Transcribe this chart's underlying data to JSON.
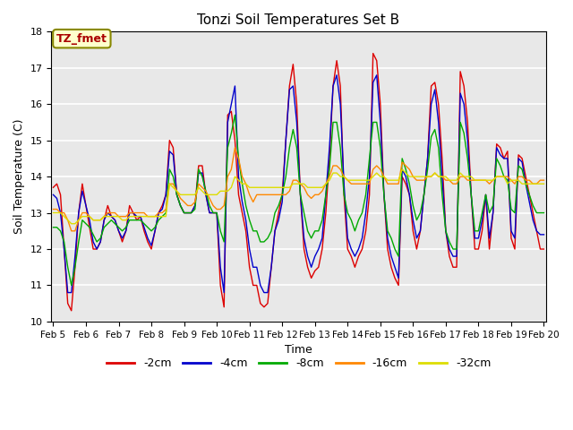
{
  "title": "Tonzi Soil Temperatures Set B",
  "xlabel": "Time",
  "ylabel": "Soil Temperature (C)",
  "ylim": [
    10.0,
    18.0
  ],
  "yticks": [
    10.0,
    11.0,
    12.0,
    13.0,
    14.0,
    15.0,
    16.0,
    17.0,
    18.0
  ],
  "bg_color": "#e8e8e8",
  "annotation_text": "TZ_fmet",
  "annotation_color": "#aa0000",
  "annotation_bg": "#ffffcc",
  "annotation_border": "#888800",
  "series_colors": {
    "-2cm": "#dd0000",
    "-4cm": "#0000cc",
    "-8cm": "#00aa00",
    "-16cm": "#ff8800",
    "-32cm": "#dddd00"
  },
  "x_labels": [
    "Feb 5",
    "Feb 6",
    "Feb 7",
    "Feb 8",
    "Feb 9",
    "Feb 10",
    "Feb 11",
    "Feb 12",
    "Feb 13",
    "Feb 14",
    "Feb 15",
    "Feb 16",
    "Feb 17",
    "Feb 18",
    "Feb 19",
    "Feb 20"
  ],
  "n_per_day": 8,
  "legend_entries": [
    "-2cm",
    "-4cm",
    "-8cm",
    "-16cm",
    "-32cm"
  ],
  "data": {
    "-2cm": [
      13.7,
      13.8,
      13.5,
      12.0,
      10.5,
      10.3,
      11.5,
      13.0,
      13.8,
      13.2,
      12.6,
      12.0,
      12.0,
      12.2,
      12.8,
      13.2,
      12.9,
      12.8,
      12.5,
      12.2,
      12.5,
      13.2,
      13.0,
      12.8,
      12.9,
      12.5,
      12.2,
      12.0,
      12.5,
      13.0,
      13.2,
      13.5,
      15.0,
      14.8,
      13.5,
      13.2,
      13.0,
      13.0,
      13.0,
      13.2,
      14.3,
      14.3,
      13.5,
      13.0,
      13.0,
      13.0,
      11.0,
      10.4,
      15.7,
      15.8,
      15.0,
      13.5,
      13.0,
      12.5,
      11.5,
      11.0,
      11.0,
      10.5,
      10.4,
      10.5,
      11.5,
      12.5,
      13.0,
      13.5,
      15.0,
      16.5,
      17.1,
      16.0,
      13.5,
      12.0,
      11.5,
      11.2,
      11.4,
      11.5,
      12.0,
      13.0,
      14.5,
      16.5,
      17.2,
      16.5,
      13.5,
      12.0,
      11.8,
      11.5,
      11.8,
      12.0,
      12.5,
      13.5,
      17.4,
      17.2,
      16.0,
      13.5,
      12.0,
      11.5,
      11.2,
      11.0,
      14.0,
      13.8,
      13.5,
      12.5,
      12.0,
      12.5,
      13.5,
      14.5,
      16.5,
      16.6,
      16.0,
      14.5,
      12.5,
      11.8,
      11.5,
      11.5,
      16.9,
      16.5,
      15.5,
      13.5,
      12.0,
      12.0,
      12.5,
      13.5,
      12.0,
      13.0,
      14.9,
      14.8,
      14.5,
      14.7,
      12.3,
      12.0,
      14.6,
      14.5,
      14.0,
      13.5,
      13.0,
      12.5,
      12.0,
      12.0
    ],
    "-4cm": [
      13.5,
      13.4,
      13.0,
      12.0,
      10.8,
      10.8,
      11.8,
      13.0,
      13.6,
      13.2,
      12.8,
      12.2,
      12.0,
      12.2,
      12.8,
      13.0,
      12.9,
      12.8,
      12.5,
      12.3,
      12.5,
      13.0,
      13.0,
      12.9,
      12.9,
      12.6,
      12.3,
      12.1,
      12.5,
      13.0,
      13.1,
      13.5,
      14.7,
      14.6,
      13.5,
      13.2,
      13.0,
      13.0,
      13.0,
      13.2,
      14.1,
      14.1,
      13.5,
      13.0,
      13.0,
      13.0,
      11.5,
      10.8,
      15.5,
      16.0,
      16.5,
      14.0,
      13.3,
      12.8,
      12.0,
      11.5,
      11.5,
      11.0,
      10.8,
      10.8,
      11.5,
      12.5,
      12.8,
      13.3,
      15.0,
      16.4,
      16.5,
      15.5,
      13.5,
      12.3,
      11.8,
      11.5,
      11.8,
      12.0,
      12.3,
      13.5,
      14.8,
      16.5,
      16.8,
      16.0,
      13.8,
      12.3,
      12.0,
      11.8,
      12.0,
      12.3,
      13.0,
      14.0,
      16.6,
      16.8,
      15.5,
      13.5,
      12.3,
      11.8,
      11.5,
      11.2,
      14.2,
      14.0,
      13.5,
      12.8,
      12.3,
      12.5,
      13.5,
      14.5,
      16.0,
      16.4,
      15.5,
      14.0,
      12.5,
      12.0,
      11.8,
      11.8,
      16.3,
      16.0,
      15.0,
      13.5,
      12.3,
      12.3,
      12.8,
      13.5,
      12.3,
      13.0,
      14.8,
      14.6,
      14.5,
      14.5,
      12.5,
      12.3,
      14.5,
      14.4,
      13.8,
      13.3,
      12.8,
      12.5,
      12.4,
      12.4
    ],
    "-8cm": [
      12.6,
      12.6,
      12.5,
      12.2,
      11.5,
      11.0,
      11.5,
      12.2,
      12.8,
      12.7,
      12.6,
      12.4,
      12.2,
      12.3,
      12.6,
      12.7,
      12.8,
      12.7,
      12.6,
      12.5,
      12.6,
      12.8,
      12.8,
      12.8,
      12.8,
      12.7,
      12.6,
      12.5,
      12.6,
      12.8,
      12.9,
      13.0,
      14.2,
      14.0,
      13.5,
      13.2,
      13.0,
      13.0,
      13.0,
      13.1,
      14.2,
      14.0,
      13.6,
      13.2,
      13.0,
      13.0,
      12.5,
      12.2,
      14.8,
      15.2,
      15.7,
      14.5,
      13.8,
      13.2,
      12.8,
      12.5,
      12.5,
      12.2,
      12.2,
      12.3,
      12.5,
      13.0,
      13.2,
      13.5,
      14.0,
      14.8,
      15.3,
      14.8,
      13.5,
      13.0,
      12.5,
      12.3,
      12.5,
      12.5,
      12.8,
      13.5,
      14.2,
      15.5,
      15.5,
      14.8,
      13.5,
      13.0,
      12.8,
      12.5,
      12.8,
      13.0,
      13.5,
      14.5,
      15.5,
      15.5,
      14.8,
      13.5,
      12.5,
      12.3,
      12.0,
      11.8,
      14.5,
      14.2,
      13.8,
      13.2,
      12.8,
      13.0,
      13.5,
      14.2,
      15.1,
      15.3,
      14.8,
      13.5,
      12.5,
      12.2,
      12.0,
      12.0,
      15.5,
      15.2,
      14.5,
      13.5,
      12.5,
      12.5,
      13.0,
      13.5,
      13.0,
      13.2,
      14.5,
      14.3,
      14.0,
      13.9,
      13.1,
      13.0,
      14.3,
      14.2,
      13.8,
      13.5,
      13.2,
      13.0,
      13.0,
      13.0
    ],
    "-16cm": [
      13.1,
      13.1,
      13.0,
      13.0,
      12.8,
      12.5,
      12.5,
      12.8,
      13.0,
      13.0,
      12.9,
      12.8,
      12.8,
      12.8,
      12.9,
      13.0,
      13.0,
      13.0,
      12.9,
      12.9,
      12.9,
      13.0,
      13.0,
      13.0,
      13.0,
      13.0,
      12.9,
      12.9,
      12.9,
      13.0,
      13.0,
      13.1,
      13.8,
      13.8,
      13.6,
      13.4,
      13.3,
      13.2,
      13.2,
      13.3,
      13.8,
      13.7,
      13.6,
      13.4,
      13.2,
      13.1,
      13.1,
      13.2,
      14.0,
      14.2,
      14.8,
      14.5,
      14.0,
      13.8,
      13.5,
      13.3,
      13.5,
      13.5,
      13.5,
      13.5,
      13.5,
      13.5,
      13.5,
      13.5,
      13.5,
      13.6,
      13.9,
      13.9,
      13.8,
      13.7,
      13.5,
      13.4,
      13.5,
      13.5,
      13.6,
      13.8,
      14.0,
      14.3,
      14.3,
      14.2,
      14.0,
      13.9,
      13.8,
      13.8,
      13.8,
      13.8,
      13.8,
      13.8,
      14.2,
      14.3,
      14.2,
      14.0,
      13.8,
      13.8,
      13.8,
      13.8,
      14.4,
      14.3,
      14.2,
      14.0,
      13.9,
      13.9,
      13.9,
      14.0,
      14.0,
      14.1,
      14.0,
      14.0,
      13.9,
      13.9,
      13.8,
      13.8,
      14.0,
      14.0,
      13.9,
      13.9,
      13.9,
      13.9,
      13.9,
      13.9,
      13.8,
      13.9,
      14.0,
      14.0,
      14.0,
      14.0,
      13.9,
      13.8,
      14.0,
      14.0,
      13.9,
      13.9,
      13.8,
      13.8,
      13.9,
      13.9
    ],
    "-32cm": [
      13.0,
      13.0,
      13.0,
      12.9,
      12.8,
      12.7,
      12.7,
      12.8,
      12.9,
      12.9,
      12.9,
      12.8,
      12.8,
      12.8,
      12.9,
      12.9,
      12.9,
      12.9,
      12.9,
      12.8,
      12.8,
      12.9,
      12.9,
      12.9,
      12.9,
      12.9,
      12.9,
      12.9,
      12.9,
      12.9,
      12.9,
      12.9,
      13.8,
      13.7,
      13.6,
      13.5,
      13.5,
      13.5,
      13.5,
      13.5,
      13.7,
      13.6,
      13.5,
      13.5,
      13.5,
      13.5,
      13.6,
      13.6,
      13.6,
      13.7,
      14.0,
      13.9,
      13.8,
      13.8,
      13.7,
      13.7,
      13.7,
      13.7,
      13.7,
      13.7,
      13.7,
      13.7,
      13.7,
      13.7,
      13.7,
      13.7,
      13.8,
      13.8,
      13.8,
      13.8,
      13.7,
      13.7,
      13.7,
      13.7,
      13.7,
      13.8,
      13.9,
      14.1,
      14.1,
      14.0,
      14.0,
      13.9,
      13.9,
      13.9,
      13.9,
      13.9,
      13.9,
      13.9,
      14.0,
      14.1,
      14.0,
      14.0,
      13.9,
      13.9,
      13.9,
      13.9,
      14.2,
      14.1,
      14.0,
      14.0,
      14.0,
      14.0,
      14.0,
      14.0,
      14.0,
      14.1,
      14.0,
      14.0,
      14.0,
      13.9,
      13.9,
      13.9,
      14.1,
      14.0,
      14.0,
      14.0,
      13.9,
      13.9,
      13.9,
      13.9,
      13.9,
      13.9,
      14.0,
      14.0,
      14.0,
      13.8,
      13.9,
      13.9,
      13.9,
      13.8,
      13.8,
      13.8,
      13.8,
      13.8,
      13.8,
      13.8
    ]
  }
}
